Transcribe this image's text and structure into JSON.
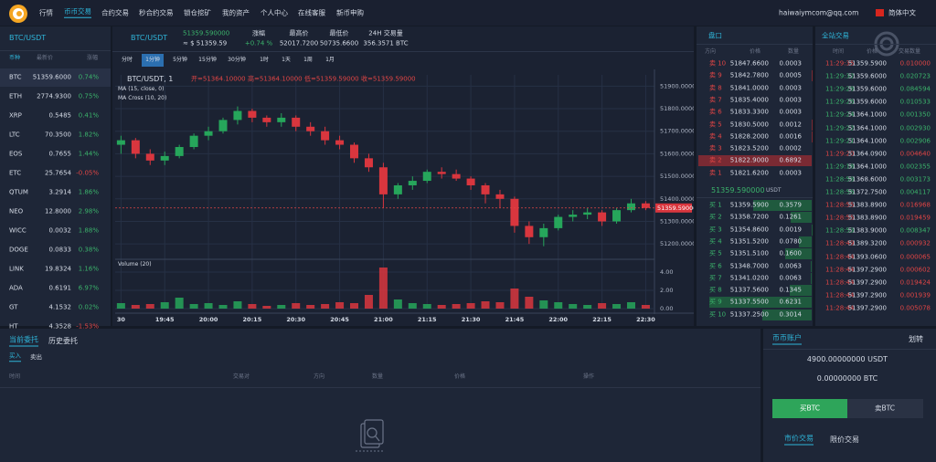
{
  "nav": {
    "items": [
      "行情",
      "币币交易",
      "合约交易",
      "秒合约交易",
      "锁仓挖矿",
      "我的资产",
      "个人中心",
      "在线客服",
      "新币申购"
    ],
    "active": 1,
    "user": "haiwaiymcom@qq.com",
    "language": "简体中文"
  },
  "markets": {
    "title": "BTC/USDT",
    "headers": [
      "币种",
      "最新价",
      "涨幅"
    ],
    "rows": [
      [
        "BTC",
        "51359.6000",
        "0.74%"
      ],
      [
        "ETH",
        "2774.9300",
        "0.75%"
      ],
      [
        "XRP",
        "0.5485",
        "0.41%"
      ],
      [
        "LTC",
        "70.3500",
        "1.82%"
      ],
      [
        "EOS",
        "0.7655",
        "1.44%"
      ],
      [
        "ETC",
        "25.7654",
        "-0.05%"
      ],
      [
        "QTUM",
        "3.2914",
        "1.86%"
      ],
      [
        "NEO",
        "12.8000",
        "2.98%"
      ],
      [
        "WICC",
        "0.0032",
        "1.88%"
      ],
      [
        "DOGE",
        "0.0833",
        "0.38%"
      ],
      [
        "LINK",
        "19.8324",
        "1.16%"
      ],
      [
        "ADA",
        "0.6191",
        "6.97%"
      ],
      [
        "GT",
        "4.1532",
        "0.02%"
      ],
      [
        "HT",
        "4.3528",
        "-1.53%"
      ]
    ]
  },
  "ticker": {
    "pair": "BTC/USDT",
    "price": "51359.590000",
    "price_usd": "≈ $ 51359.59",
    "change_label": "涨幅",
    "change": "+0.74 %",
    "high_label": "最高价",
    "high": "52017.7200",
    "low_label": "最低价",
    "low": "50735.6600",
    "volume_label": "24H 交易量",
    "volume": "356.3571 BTC"
  },
  "intervals": {
    "items": [
      "分时",
      "1分钟",
      "5分钟",
      "15分钟",
      "30分钟",
      "1时",
      "1天",
      "1周",
      "1月"
    ],
    "active": 1
  },
  "chart_data": {
    "type": "candlestick",
    "title": "BTC/USDT, 1",
    "ohlc_text": [
      "开=51364.10000",
      "高=51364.10000",
      "低=51359.59000",
      "收=51359.59000"
    ],
    "indicators": [
      "MA (15, close, 0)",
      "MA Cross (10, 20)"
    ],
    "x": [
      "19:30",
      "19:35",
      "19:40",
      "19:45",
      "19:50",
      "19:55",
      "20:00",
      "20:05",
      "20:10",
      "20:15",
      "20:20",
      "20:25",
      "20:30",
      "20:35",
      "20:40",
      "20:45",
      "20:50",
      "20:55",
      "21:00",
      "21:05",
      "21:10",
      "21:15",
      "21:20",
      "21:25",
      "21:30",
      "21:35",
      "21:40",
      "21:45",
      "21:50",
      "21:55",
      "22:00",
      "22:05",
      "22:10",
      "22:15",
      "22:20",
      "22:25",
      "22:30"
    ],
    "open": [
      51640,
      51660,
      51600,
      51570,
      51590,
      51630,
      51680,
      51700,
      51750,
      51790,
      51760,
      51740,
      51760,
      51720,
      51700,
      51660,
      51640,
      51580,
      51540,
      51420,
      51460,
      51480,
      51520,
      51510,
      51490,
      51460,
      51420,
      51400,
      51280,
      51230,
      51270,
      51320,
      51330,
      51340,
      51300,
      51350,
      51380
    ],
    "high": [
      51680,
      51670,
      51620,
      51610,
      51640,
      51690,
      51720,
      51760,
      51810,
      51800,
      51770,
      51780,
      51770,
      51740,
      51720,
      51680,
      51650,
      51600,
      51560,
      51470,
      51500,
      51530,
      51540,
      51530,
      51500,
      51470,
      51440,
      51410,
      51300,
      51290,
      51330,
      51350,
      51360,
      51350,
      51360,
      51400,
      51390
    ],
    "low": [
      51600,
      51580,
      51550,
      51550,
      51580,
      51620,
      51660,
      51690,
      51730,
      51740,
      51720,
      51720,
      51700,
      51680,
      51640,
      51620,
      51560,
      51520,
      51360,
      51400,
      51440,
      51470,
      51490,
      51480,
      51440,
      51380,
      51360,
      51250,
      51200,
      51190,
      51260,
      51300,
      51310,
      51280,
      51290,
      51340,
      51350
    ],
    "close": [
      51660,
      51600,
      51570,
      51590,
      51630,
      51680,
      51700,
      51750,
      51790,
      51760,
      51740,
      51760,
      51720,
      51700,
      51660,
      51640,
      51580,
      51540,
      51420,
      51460,
      51480,
      51520,
      51510,
      51490,
      51460,
      51420,
      51400,
      51280,
      51230,
      51270,
      51320,
      51330,
      51340,
      51300,
      51350,
      51380,
      51359.59
    ],
    "up_color": "#26a65b",
    "down_color": "#d9363e",
    "xlim": [
      "19:28",
      "22:33"
    ],
    "xticks": [
      {
        "value": "19:30",
        "label": "30"
      },
      "19:45",
      "20:00",
      "20:15",
      "20:30",
      "20:45",
      "21:00",
      "21:15",
      "21:30",
      "21:45",
      "22:00",
      "22:15",
      "22:30"
    ],
    "ylim": [
      51140,
      51950
    ],
    "yticks": [
      {
        "value": 51200,
        "label": "51200.0000"
      },
      {
        "value": 51300,
        "label": "51300.0000"
      },
      {
        "value": 51400,
        "label": "51400.0000"
      },
      {
        "value": 51500,
        "label": "51500.0000"
      },
      {
        "value": 51600,
        "label": "51600.0000"
      },
      {
        "value": 51700,
        "label": "51700.0000"
      },
      {
        "value": 51800,
        "label": "51800.0000"
      },
      {
        "value": 51900,
        "label": "51900.0000"
      }
    ],
    "price_line": {
      "value": 51359.59,
      "label": "51359.59000"
    },
    "grid": true,
    "volume_title": "Volume (20)",
    "volume": [
      0.6,
      0.4,
      0.5,
      0.7,
      1.2,
      0.5,
      0.6,
      0.4,
      0.8,
      0.5,
      0.3,
      0.4,
      0.6,
      0.4,
      0.5,
      0.7,
      0.6,
      1.5,
      4.5,
      1.0,
      0.6,
      0.5,
      0.4,
      0.5,
      0.6,
      0.8,
      0.7,
      2.2,
      1.3,
      0.9,
      0.7,
      0.5,
      0.4,
      0.6,
      0.5,
      0.7,
      0.4
    ],
    "volume_ylim": [
      0,
      5
    ],
    "volume_yticks": [
      {
        "value": 0,
        "label": "0.00"
      },
      {
        "value": 2,
        "label": "2.00"
      },
      {
        "value": 4,
        "label": "4.00"
      }
    ]
  },
  "orderbook": {
    "title": "盘口",
    "headers": [
      "方向",
      "价格",
      "数量"
    ],
    "asks": [
      [
        "卖 10",
        "51847.6600",
        0.0003,
        "0.0003"
      ],
      [
        "卖 9",
        "51842.7800",
        0.0005,
        "0.0005"
      ],
      [
        "卖 8",
        "51841.0000",
        0.0003,
        "0.0003"
      ],
      [
        "卖 7",
        "51835.4000",
        0.0003,
        "0.0003"
      ],
      [
        "卖 6",
        "51833.3300",
        0.0003,
        "0.0003"
      ],
      [
        "卖 5",
        "51830.5000",
        0.0012,
        "0.0012"
      ],
      [
        "卖 4",
        "51828.2000",
        0.0016,
        "0.0016"
      ],
      [
        "卖 3",
        "51823.5200",
        0.0002,
        "0.0002"
      ],
      [
        "卖 2",
        "51822.9000",
        0.6892,
        "0.6892"
      ],
      [
        "卖 1",
        "51821.6200",
        0.0003,
        "0.0003"
      ]
    ],
    "last_price": "51359.590000",
    "last_unit": "USDT",
    "bids": [
      [
        "买 1",
        "51359.5900",
        0.3579,
        "0.3579"
      ],
      [
        "买 2",
        "51358.7200",
        0.1261,
        "0.1261"
      ],
      [
        "买 3",
        "51354.8600",
        0.0019,
        "0.0019"
      ],
      [
        "买 4",
        "51351.5200",
        0.078,
        "0.0780"
      ],
      [
        "买 5",
        "51351.5100",
        0.16,
        "0.1600"
      ],
      [
        "买 6",
        "51348.7000",
        0.0063,
        "0.0063"
      ],
      [
        "买 7",
        "51341.0200",
        0.0063,
        "0.0063"
      ],
      [
        "买 8",
        "51337.5600",
        0.1345,
        "0.1345"
      ],
      [
        "买 9",
        "51337.5500",
        0.6231,
        "0.6231"
      ],
      [
        "买 10",
        "51337.2500",
        0.3014,
        "0.3014"
      ]
    ],
    "ask_color": "#e04545",
    "bid_color": "#3bb36b"
  },
  "trades": {
    "title": "全站交易",
    "headers": [
      "时间",
      "价格",
      "交易数量"
    ],
    "rows": [
      {
        "time": "11:29:35",
        "price": "51359.5900",
        "amount": "0.010000",
        "color": "#e04545"
      },
      {
        "time": "11:29:32",
        "price": "51359.6000",
        "amount": "0.020723",
        "color": "#3bb36b"
      },
      {
        "time": "11:29:28",
        "price": "51359.6000",
        "amount": "0.084594",
        "color": "#3bb36b"
      },
      {
        "time": "11:29:26",
        "price": "51359.6000",
        "amount": "0.010533",
        "color": "#3bb36b"
      },
      {
        "time": "11:29:24",
        "price": "51364.1000",
        "amount": "0.001350",
        "color": "#3bb36b"
      },
      {
        "time": "11:29:22",
        "price": "51364.1000",
        "amount": "0.002930",
        "color": "#3bb36b"
      },
      {
        "time": "11:29:21",
        "price": "51364.1000",
        "amount": "0.002906",
        "color": "#3bb36b"
      },
      {
        "time": "11:29:20",
        "price": "51364.0900",
        "amount": "0.004640",
        "color": "#e04545"
      },
      {
        "time": "11:29:18",
        "price": "51364.1000",
        "amount": "0.002355",
        "color": "#3bb36b"
      },
      {
        "time": "11:28:58",
        "price": "51368.6000",
        "amount": "0.003173",
        "color": "#3bb36b"
      },
      {
        "time": "11:28:56",
        "price": "51372.7500",
        "amount": "0.004117",
        "color": "#3bb36b"
      },
      {
        "time": "11:28:55",
        "price": "51383.8900",
        "amount": "0.016968",
        "color": "#e04545"
      },
      {
        "time": "11:28:55",
        "price": "51383.8900",
        "amount": "0.019459",
        "color": "#e04545"
      },
      {
        "time": "11:28:53",
        "price": "51383.9000",
        "amount": "0.008347",
        "color": "#3bb36b"
      },
      {
        "time": "11:28:49",
        "price": "51389.3200",
        "amount": "0.000932",
        "color": "#e04545"
      },
      {
        "time": "11:28:44",
        "price": "51393.0600",
        "amount": "0.000065",
        "color": "#e04545"
      },
      {
        "time": "11:28:44",
        "price": "51397.2900",
        "amount": "0.000602",
        "color": "#e04545"
      },
      {
        "time": "11:28:44",
        "price": "51397.2900",
        "amount": "0.019424",
        "color": "#e04545"
      },
      {
        "time": "11:28:44",
        "price": "51397.2900",
        "amount": "0.001939",
        "color": "#e04545"
      },
      {
        "time": "11:28:44",
        "price": "51397.2900",
        "amount": "0.005078",
        "color": "#e04545"
      }
    ]
  },
  "orders": {
    "tabs": [
      "当前委托",
      "历史委托"
    ],
    "sides": [
      "买入",
      "卖出"
    ],
    "headers": [
      "时间",
      "交易对",
      "方向",
      "数量",
      "价格",
      "操作"
    ]
  },
  "account": {
    "title": "币币账户",
    "transfer": "划转",
    "usdt": "4900.00000000 USDT",
    "btc": "0.00000000 BTC",
    "buy": "买BTC",
    "sell": "卖BTC",
    "tabs": [
      "市价交易",
      "限价交易"
    ]
  }
}
